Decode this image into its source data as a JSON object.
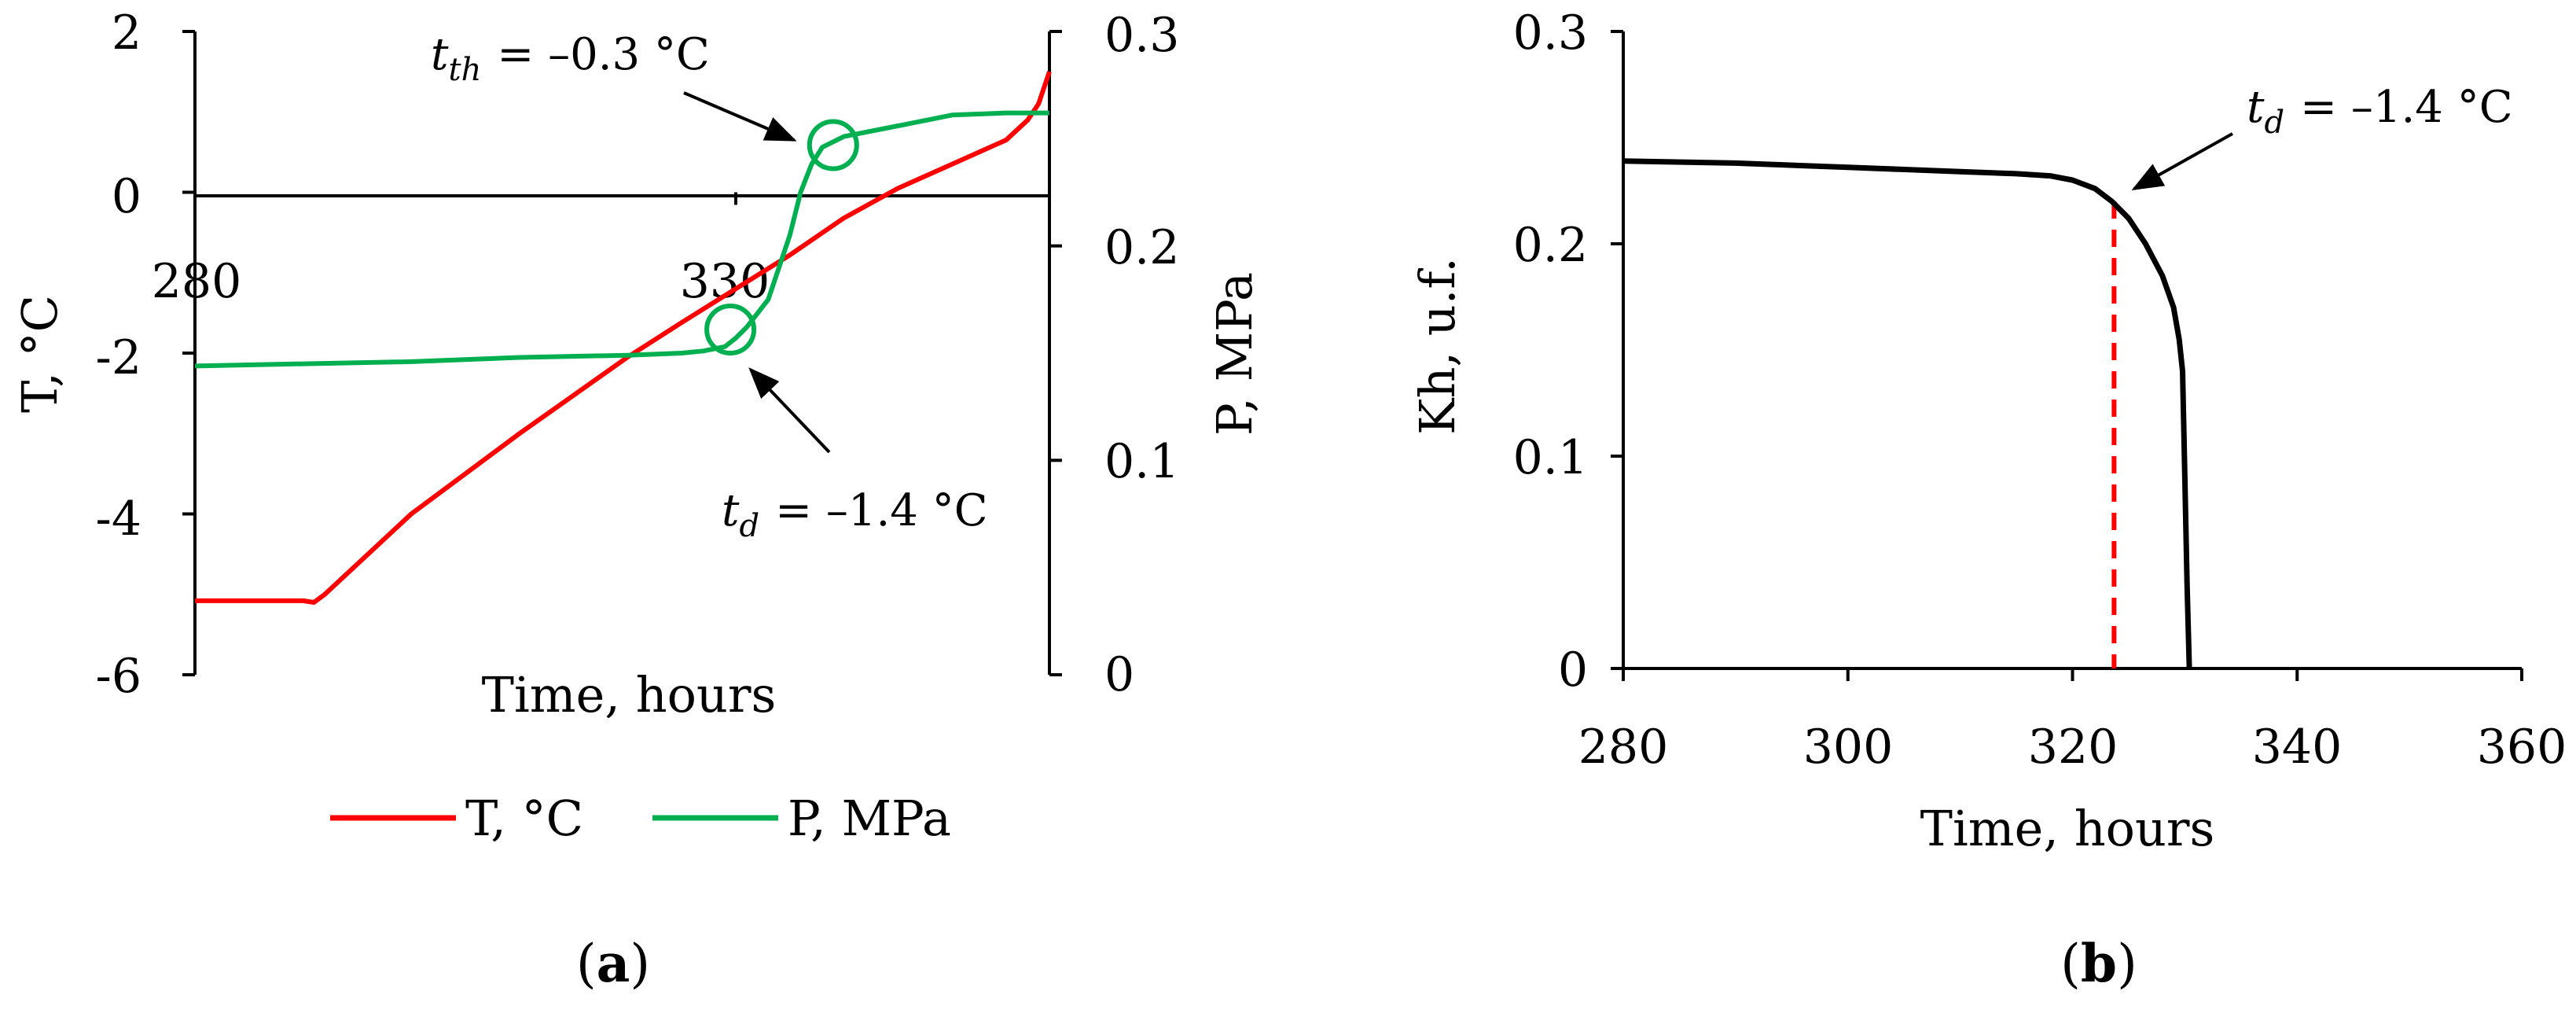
{
  "panels": {
    "a_label": "a",
    "b_label": "b"
  },
  "chart_data": [
    {
      "panel": "a",
      "type": "line",
      "xlabel": "Time, hours",
      "ylabel": "T, °C",
      "y2label": "P, MPa",
      "xlim": [
        280,
        359
      ],
      "ylim": [
        -6,
        2
      ],
      "y2lim": [
        0,
        0.3
      ],
      "x_ticks": [
        "280",
        "330"
      ],
      "y_ticks": [
        "2",
        "0",
        "-2",
        "-4",
        "-6"
      ],
      "y2_ticks": [
        "0.3",
        "0.2",
        "0.1",
        "0"
      ],
      "grid": false,
      "legend_position": "bottom",
      "colors": {
        "T": "#ff0000",
        "P": "#00b050"
      },
      "series": [
        {
          "name": "T, °C",
          "axis": "left",
          "x": [
            280,
            290,
            291,
            292,
            300,
            310,
            320,
            325,
            330,
            335,
            340,
            345,
            350,
            355,
            357,
            358,
            359
          ],
          "y": [
            -5.08,
            -5.08,
            -5.1,
            -5.0,
            -4.0,
            -3.0,
            -2.05,
            -1.62,
            -1.2,
            -0.78,
            -0.32,
            0.05,
            0.35,
            0.65,
            0.9,
            1.1,
            1.5
          ]
        },
        {
          "name": "P, MPa",
          "axis": "right",
          "x": [
            280,
            290,
            300,
            310,
            320,
            325,
            327,
            329,
            330,
            331,
            333,
            335,
            336,
            337,
            338,
            340,
            345,
            350,
            355,
            359
          ],
          "y": [
            0.144,
            0.145,
            0.146,
            0.148,
            0.149,
            0.15,
            0.151,
            0.153,
            0.157,
            0.162,
            0.175,
            0.205,
            0.225,
            0.238,
            0.246,
            0.251,
            0.256,
            0.261,
            0.262,
            0.262
          ]
        }
      ],
      "annotations": [
        {
          "sub": "th",
          "text": "= –0.3 °C",
          "x": 339,
          "y2": 0.247
        },
        {
          "sub": "d",
          "text": "= –1.4 °C",
          "x": 329.5,
          "y2": 0.161
        }
      ]
    },
    {
      "panel": "b",
      "type": "line",
      "xlabel": "Time, hours",
      "ylabel": "Kh, u.f.",
      "xlim": [
        280,
        360
      ],
      "ylim": [
        0,
        0.3
      ],
      "x_ticks": [
        "280",
        "300",
        "320",
        "340",
        "360"
      ],
      "y_ticks": [
        "0.3",
        "0.2",
        "0.1",
        "0"
      ],
      "grid": false,
      "colors": {
        "Kh": "#000000",
        "td_line": "#ff0000"
      },
      "series": [
        {
          "x": [
            280,
            290,
            300,
            310,
            315,
            318,
            320,
            322,
            323.5,
            325,
            326.5,
            328,
            329,
            329.5,
            329.8,
            330,
            330.2,
            330.4
          ],
          "y": [
            0.239,
            0.238,
            0.236,
            0.234,
            0.233,
            0.232,
            0.23,
            0.226,
            0.22,
            0.212,
            0.2,
            0.185,
            0.17,
            0.155,
            0.14,
            0.09,
            0.04,
            0.0
          ]
        }
      ],
      "marker_line": {
        "x": 323.7,
        "y": 0.22
      },
      "annotations": [
        {
          "sub": "d",
          "text": "= –1.4 °C",
          "x": 323.7,
          "y": 0.22
        }
      ]
    }
  ]
}
